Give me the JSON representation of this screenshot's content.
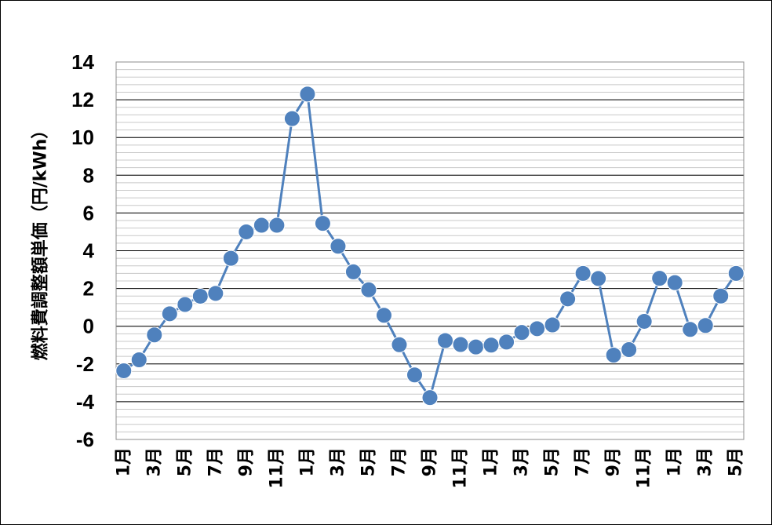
{
  "chart_data": {
    "type": "line",
    "title": "",
    "xlabel": "",
    "ylabel": "燃料費調整額単価（円/kWh）",
    "ylim": [
      -6,
      14
    ],
    "yticks": [
      "14",
      "12",
      "10",
      "8",
      "6",
      "4",
      "2",
      "0",
      "-2",
      "-4",
      "-6"
    ],
    "x_tick_labels": [
      "1月",
      "3月",
      "5月",
      "7月",
      "9月",
      "11月",
      "1月",
      "3月",
      "5月",
      "7月",
      "9月",
      "11月",
      "1月",
      "3月",
      "5月",
      "7月",
      "9月",
      "11月",
      "1月",
      "3月",
      "5月"
    ],
    "minor_grid": true,
    "series": [
      {
        "color": "#4F81BD",
        "values": [
          -2.36,
          -1.78,
          -0.46,
          0.66,
          1.15,
          1.59,
          1.74,
          3.6,
          5.0,
          5.35,
          5.35,
          11.0,
          12.3,
          5.45,
          4.24,
          2.88,
          1.93,
          0.58,
          -0.98,
          -2.58,
          -3.78,
          -0.76,
          -0.97,
          -1.1,
          -1.0,
          -0.84,
          -0.33,
          -0.13,
          0.07,
          1.45,
          2.8,
          2.53,
          -1.53,
          -1.24,
          0.26,
          2.54,
          2.31,
          -0.17,
          0.04,
          1.6,
          2.8
        ]
      }
    ]
  }
}
